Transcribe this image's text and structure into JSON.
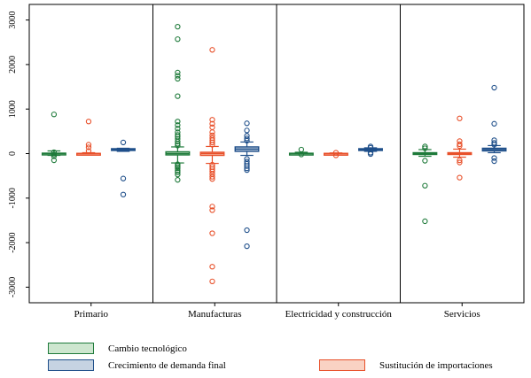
{
  "chart_data": {
    "type": "scatter",
    "subtype": "box-with-outliers",
    "categories": [
      "Primario",
      "Manufacturas",
      "Electricidad y construcción",
      "Servicios"
    ],
    "yticks": [
      -3000,
      -2000,
      -1000,
      0,
      1000,
      2000,
      3000
    ],
    "ylim": [
      -3350,
      3350
    ],
    "grid": false,
    "legend_placement": "bottom",
    "series": [
      {
        "name": "Cambio tecnológico",
        "color": "#1e7a3a",
        "fill": "#cde6cf",
        "groups": [
          {
            "q1": -10,
            "median": 0,
            "q3": 10,
            "whisker_low": -40,
            "whisker_high": 60,
            "points": [
              880,
              -150,
              -60,
              30,
              -20
            ]
          },
          {
            "q1": -30,
            "median": 0,
            "q3": 40,
            "whisker_low": -210,
            "whisker_high": 150,
            "points": [
              2850,
              2570,
              1820,
              1750,
              1680,
              1290,
              720,
              640,
              560,
              480,
              420,
              380,
              330,
              270,
              220,
              180,
              -240,
              -270,
              -300,
              -330,
              -380,
              -420,
              -470,
              -590
            ]
          },
          {
            "q1": -8,
            "median": 0,
            "q3": 8,
            "whisker_low": -25,
            "whisker_high": 30,
            "points": [
              90,
              -20
            ]
          },
          {
            "q1": -15,
            "median": 0,
            "q3": 20,
            "whisker_low": -60,
            "whisker_high": 90,
            "points": [
              160,
              120,
              -160,
              -720,
              -1520
            ]
          }
        ]
      },
      {
        "name": "Sustitución de importaciones",
        "color": "#e8502a",
        "fill": "#f9d2c3",
        "groups": [
          {
            "q1": -5,
            "median": 0,
            "q3": 5,
            "whisker_low": -15,
            "whisker_high": 20,
            "points": [
              720,
              200,
              140,
              60
            ]
          },
          {
            "q1": -40,
            "median": 0,
            "q3": 30,
            "whisker_low": -220,
            "whisker_high": 160,
            "points": [
              2330,
              760,
              670,
              590,
              480,
              410,
              350,
              300,
              250,
              200,
              -250,
              -300,
              -350,
              -400,
              -460,
              -520,
              -570,
              -1190,
              -1270,
              -1790,
              -2540,
              -2870
            ]
          },
          {
            "q1": -5,
            "median": 0,
            "q3": 5,
            "whisker_low": -15,
            "whisker_high": 15,
            "points": [
              20,
              -40
            ]
          },
          {
            "q1": -20,
            "median": 0,
            "q3": 20,
            "whisker_low": -80,
            "whisker_high": 100,
            "points": [
              790,
              280,
              210,
              170,
              -150,
              -200,
              -540
            ]
          }
        ]
      },
      {
        "name": "Crecimiento de demanda final",
        "color": "#1f4f8a",
        "fill": "#c6d3e2",
        "groups": [
          {
            "q1": 70,
            "median": 90,
            "q3": 110,
            "whisker_low": 50,
            "whisker_high": 120,
            "points": [
              250,
              -560,
              -920
            ]
          },
          {
            "q1": 50,
            "median": 100,
            "q3": 150,
            "whisker_low": -40,
            "whisker_high": 260,
            "points": [
              680,
              520,
              400,
              340,
              290,
              -120,
              -180,
              -230,
              -280,
              -330,
              -370,
              -1720,
              -2080
            ]
          },
          {
            "q1": 70,
            "median": 90,
            "q3": 110,
            "whisker_low": 50,
            "whisker_high": 130,
            "points": [
              160,
              130,
              20,
              -10
            ]
          },
          {
            "q1": 60,
            "median": 90,
            "q3": 120,
            "whisker_low": 20,
            "whisker_high": 180,
            "points": [
              1480,
              670,
              300,
              240,
              200,
              -100,
              -170
            ]
          }
        ]
      }
    ]
  },
  "legend": {
    "items": [
      {
        "label": "Cambio tecnológico",
        "series": 0
      },
      {
        "label": "Crecimiento de demanda final",
        "series": 2
      },
      {
        "label": "Sustitución de importaciones",
        "series": 1
      }
    ]
  }
}
